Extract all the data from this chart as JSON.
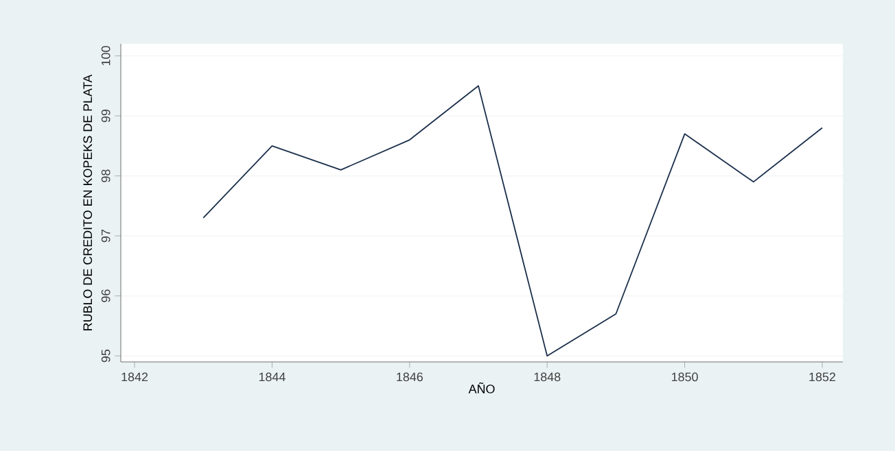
{
  "chart_data": {
    "type": "line",
    "xlabel": "AÑO",
    "ylabel": "RUBLO DE CREDITO EN KOPEKS DE PLATA",
    "x": [
      1843,
      1844,
      1845,
      1846,
      1847,
      1848,
      1849,
      1850,
      1851,
      1852
    ],
    "series": [
      {
        "color": "#1a2e4a",
        "values": [
          97.3,
          98.5,
          98.1,
          98.6,
          99.5,
          95.0,
          95.7,
          98.7,
          97.9,
          98.8
        ]
      }
    ],
    "xlim": [
      1841.8,
      1852.3
    ],
    "ylim": [
      94.9,
      100.2
    ],
    "xticks": [
      1842,
      1844,
      1846,
      1848,
      1850,
      1852
    ],
    "yticks": [
      95,
      96,
      97,
      98,
      99,
      100
    ],
    "grid": "y",
    "marker": "none",
    "line_style": "solid"
  }
}
